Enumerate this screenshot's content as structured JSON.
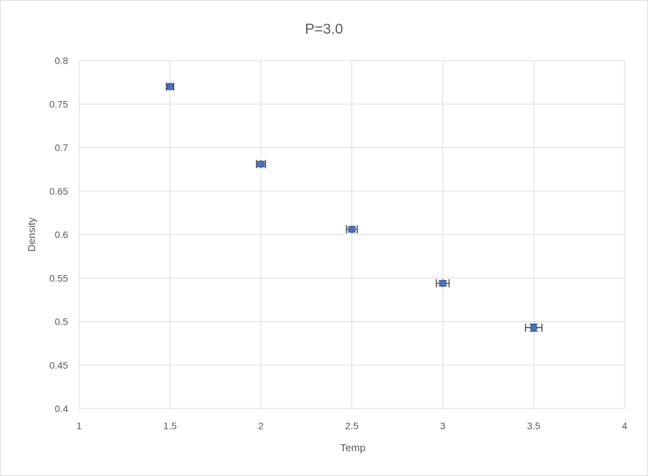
{
  "chart_data": {
    "type": "scatter",
    "title": "P=3.0",
    "xlabel": "Temp",
    "ylabel": "Density",
    "xlim": [
      1,
      4
    ],
    "ylim": [
      0.4,
      0.8
    ],
    "x_ticks": [
      "1",
      "1.5",
      "2",
      "2.5",
      "3",
      "3.5",
      "4"
    ],
    "x_tick_values": [
      1,
      1.5,
      2,
      2.5,
      3,
      3.5,
      4
    ],
    "y_ticks": [
      "0.4",
      "0.45",
      "0.5",
      "0.55",
      "0.6",
      "0.65",
      "0.7",
      "0.75",
      "0.8"
    ],
    "y_tick_values": [
      0.4,
      0.45,
      0.5,
      0.55,
      0.6,
      0.65,
      0.7,
      0.75,
      0.8
    ],
    "grid": true,
    "legend": "none",
    "marker_color": "#4472c4",
    "error_bar_color": "#404040",
    "series": [
      {
        "x": [
          1.5,
          2.0,
          2.5,
          3.0,
          3.5
        ],
        "y": [
          0.77,
          0.681,
          0.606,
          0.544,
          0.493
        ],
        "x_err": [
          0.02,
          0.025,
          0.03,
          0.035,
          0.045
        ],
        "y_err": [
          0.003,
          0.003,
          0.003,
          0.003,
          0.004
        ]
      }
    ]
  }
}
